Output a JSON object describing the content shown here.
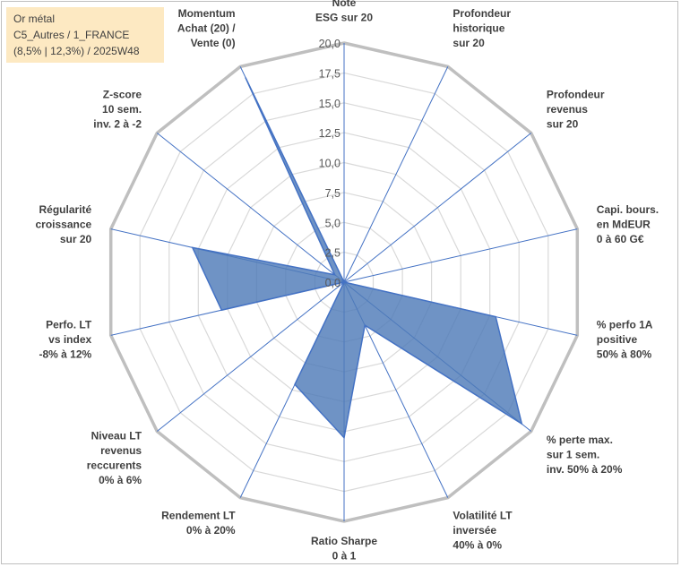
{
  "info": {
    "line1": "Or métal",
    "line2": "C5_Autres / 1_FRANCE",
    "line3": "(8,5% | 12,3%) / 2025W48"
  },
  "colors": {
    "fill": "#4f7bb8",
    "stroke": "#4472c4",
    "grid": "#d9d9d9",
    "outer": "#bfbfbf",
    "infobox": "#fde9c2"
  },
  "chart_data": {
    "type": "radar",
    "title": "",
    "range": [
      0,
      20
    ],
    "ticks": [
      "0,0",
      "2,5",
      "5,0",
      "7,5",
      "10,0",
      "12,5",
      "15,0",
      "17,5",
      "20,0"
    ],
    "categories": [
      [
        "Note",
        "ESG sur 20"
      ],
      [
        "Profondeur",
        "historique",
        "sur 20"
      ],
      [
        "Profondeur",
        "revenus",
        "sur 20"
      ],
      [
        "Capi. bours.",
        "en MdEUR",
        "0 à 60 G€"
      ],
      [
        "% perfo 1A",
        "positive",
        "50% à 80%"
      ],
      [
        "% perte max.",
        "sur 1 sem.",
        "inv. 50% à 20%"
      ],
      [
        "Volatilité LT",
        "inversée",
        "40% à 0%"
      ],
      [
        "Ratio Sharpe",
        "0 à 1"
      ],
      [
        "Rendement LT",
        "0% à 20%"
      ],
      [
        "Niveau LT",
        "revenus",
        "reccurents",
        "0% à 6%"
      ],
      [
        "Perfo. LT",
        "vs index",
        "-8% à 12%"
      ],
      [
        "Régularité",
        "croissance",
        "sur 20"
      ],
      [
        "Z-score",
        "10 sem.",
        "inv. 2 à -2"
      ],
      [
        "Momentum",
        "Achat (20) /",
        "Vente (0)"
      ]
    ],
    "series": [
      {
        "name": "Or métal",
        "values": [
          0,
          0,
          0,
          0,
          13.0,
          19.0,
          4.0,
          13.0,
          9.5,
          0,
          10.5,
          13.0,
          1.0,
          19.0
        ]
      }
    ]
  }
}
